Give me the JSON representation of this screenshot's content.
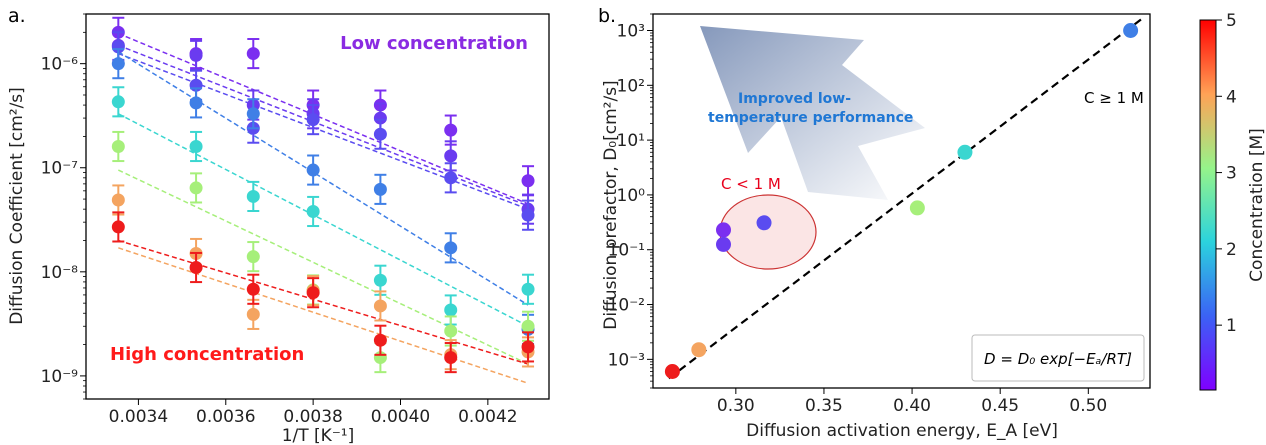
{
  "panel_a": {
    "label": "a.",
    "annotation_low": "Low concentration",
    "annotation_high": "High concentration",
    "annotation_low_color": "#8a2be2",
    "annotation_high_color": "#ff1a1a"
  },
  "panel_b": {
    "label": "b.",
    "annotation_improved_1": "Improved low-",
    "annotation_improved_2": "temperature performance",
    "annotation_improved_color": "#1f77d4",
    "annotation_cge1": "C ≥ 1 M",
    "annotation_clt1": "C < 1 M",
    "annotation_clt1_color": "#e8001c",
    "equation": "D = D₀ exp[−Eₐ/RT]"
  },
  "colorbar": {
    "label": "Concentration [M]",
    "ticks": [
      "1",
      "2",
      "3",
      "4",
      "5"
    ],
    "range": [
      0.15,
      5
    ]
  },
  "chart_data": [
    {
      "type": "scatter",
      "xlabel": "1/T [K⁻¹]",
      "ylabel": "Diffusion Coefficient [cm²/s]",
      "xlim": [
        0.00328,
        0.00434
      ],
      "ylim": [
        6e-10,
        3e-06
      ],
      "yscale": "log",
      "grid": false,
      "x_ticks": [
        "0.0034",
        "0.0036",
        "0.0038",
        "0.0040",
        "0.0042"
      ],
      "y_ticks": [
        "10⁻⁹",
        "10⁻⁸",
        "10⁻⁷",
        "10⁻⁶"
      ],
      "x": [
        0.003354,
        0.003532,
        0.003663,
        0.0038,
        0.003954,
        0.004115,
        0.004292
      ],
      "series": [
        {
          "color": "#7b2ff0",
          "values": [
            2e-06,
            1.25e-06,
            1.25e-06,
            4e-07,
            4e-07,
            2.3e-07,
            7.5e-08
          ],
          "fit": [
            1.95e-06,
            4.5e-08
          ]
        },
        {
          "color": "#6a3bf0",
          "values": [
            1.5e-06,
            1.2e-06,
            4e-07,
            3.3e-07,
            3e-07,
            1.3e-07,
            4e-08
          ],
          "fit": [
            1.5e-06,
            4.3e-08
          ]
        },
        {
          "color": "#5a4cf0",
          "values": [
            1.45e-06,
            6.2e-07,
            2.4e-07,
            2.9e-07,
            2.1e-07,
            8e-08,
            3.5e-08
          ],
          "fit": [
            1.25e-06,
            4e-08
          ]
        },
        {
          "color": "#3f7fe6",
          "values": [
            1e-06,
            4.2e-07,
            3.3e-07,
            9.5e-08,
            6.2e-08,
            1.7e-08,
            2.8e-09
          ],
          "fit": [
            1.3e-06,
            4.8e-09
          ]
        },
        {
          "color": "#3ad6d0",
          "values": [
            4.3e-07,
            1.6e-07,
            5.3e-08,
            3.8e-08,
            8.3e-09,
            4.3e-09,
            6.8e-09
          ],
          "fit": [
            3.3e-07,
            3e-09
          ]
        },
        {
          "color": "#a6ef7a",
          "values": [
            1.6e-07,
            6.4e-08,
            1.4e-08,
            6.7e-09,
            1.5e-09,
            2.7e-09,
            3e-09
          ],
          "fit": [
            9.5e-08,
            1.3e-09
          ]
        },
        {
          "color": "#f4a460",
          "values": [
            4.9e-08,
            1.5e-08,
            3.9e-09,
            6.6e-09,
            4.7e-09,
            1.6e-09,
            1.7e-09
          ],
          "fit": [
            1.7e-08,
            8.5e-10
          ]
        },
        {
          "color": "#ee1c1c",
          "values": [
            2.7e-08,
            1.1e-08,
            6.8e-09,
            6.3e-09,
            2.2e-09,
            1.5e-09,
            1.9e-09
          ],
          "fit": [
            2e-08,
            1.3e-09
          ]
        }
      ]
    },
    {
      "type": "scatter",
      "xlabel": "Diffusion activation energy, E_A [eV]",
      "ylabel": "Diffusion prefactor, D₀[cm²/s]",
      "xlim": [
        0.253,
        0.535
      ],
      "ylim": [
        0.0003,
        2000.0
      ],
      "yscale": "log",
      "grid": false,
      "x_ticks": [
        "0.30",
        "0.35",
        "0.40",
        "0.45",
        "0.50"
      ],
      "y_ticks": [
        "10⁻³",
        "10⁻²",
        "10⁻¹",
        "10⁰",
        "10¹",
        "10²",
        "10³"
      ],
      "points": [
        {
          "x": 0.264,
          "y": 0.0006,
          "color": "#ee1c1c"
        },
        {
          "x": 0.279,
          "y": 0.0015,
          "color": "#f4a460"
        },
        {
          "x": 0.293,
          "y": 0.23,
          "color": "#7b2ff0"
        },
        {
          "x": 0.293,
          "y": 0.125,
          "color": "#6a3bf0"
        },
        {
          "x": 0.316,
          "y": 0.31,
          "color": "#5a4cf0"
        },
        {
          "x": 0.403,
          "y": 0.58,
          "color": "#a6ef7a"
        },
        {
          "x": 0.43,
          "y": 6.0,
          "color": "#3ad6d0"
        },
        {
          "x": 0.524,
          "y": 1000,
          "color": "#3f7fe6"
        }
      ],
      "fit_line": {
        "x": [
          0.262,
          0.53
        ],
        "y": [
          0.00045,
          1600
        ]
      }
    }
  ]
}
